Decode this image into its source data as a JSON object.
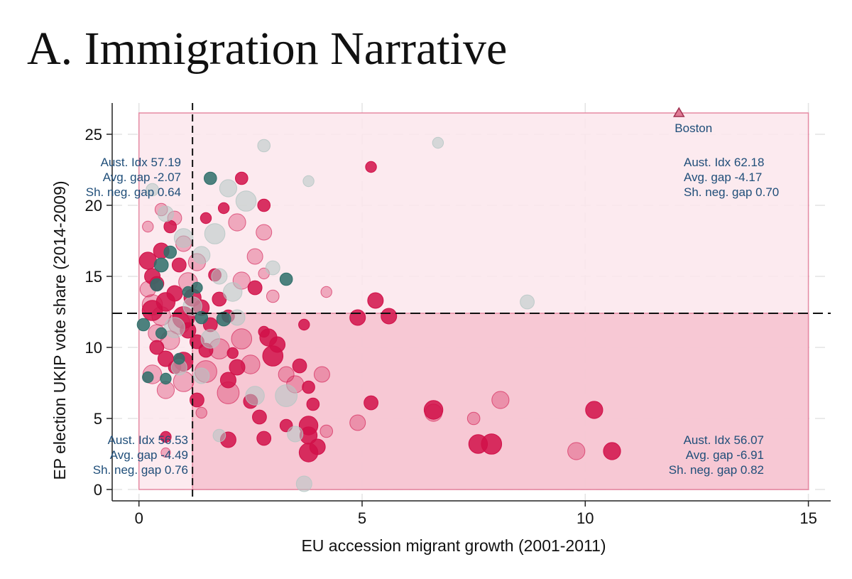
{
  "title": "A. Immigration Narrative",
  "colors": {
    "red": "#d11149",
    "teal": "#2e6f6a",
    "gray": "#b5c7c4",
    "pink_light": "#fce6ec",
    "pink_dark": "#f6c2cf",
    "region_border": "#e58aa3",
    "annotation": "#1f4e79"
  },
  "chart_data": {
    "type": "scatter",
    "xlabel": "EU accession migrant growth (2001-2011)",
    "ylabel": "EP election UKIP vote share (2014-2009)",
    "xlim": [
      -0.6,
      15.5
    ],
    "ylim": [
      -0.8,
      27.2
    ],
    "x_ticks": [
      0,
      5,
      10,
      15
    ],
    "y_ticks": [
      0,
      5,
      10,
      15,
      20,
      25
    ],
    "grid": true,
    "threshold_x": 1.2,
    "threshold_y": 12.4,
    "regions": [
      {
        "name": "upper",
        "x0": 0,
        "x1": 15,
        "y0": 0,
        "y1": 26.5,
        "shade": "light"
      },
      {
        "name": "lower-right",
        "x0": 1.2,
        "x1": 15,
        "y0": 0,
        "y1": 12.4,
        "shade": "dark"
      }
    ],
    "annotations": [
      {
        "quadrant": "top-left",
        "lines": [
          "Aust. Idx 57.19",
          "Avg. gap -2.07",
          "Sh. neg. gap 0.64"
        ]
      },
      {
        "quadrant": "top-right",
        "lines": [
          "Aust. Idx 62.18",
          "Avg. gap -4.17",
          "Sh. neg. gap 0.70"
        ]
      },
      {
        "quadrant": "bottom-left",
        "lines": [
          "Aust. Idx 56.53",
          "Avg. gap -4.49",
          "Sh. neg. gap 0.76"
        ]
      },
      {
        "quadrant": "bottom-right",
        "lines": [
          "Aust. Idx 56.07",
          "Avg. gap -6.91",
          "Sh. neg. gap 0.82"
        ]
      }
    ],
    "outlier": {
      "label": "Boston",
      "x": 12.1,
      "y": 26.5,
      "marker": "triangle"
    },
    "points": [
      [
        0.2,
        16.1,
        1.1,
        "r"
      ],
      [
        0.3,
        15.0,
        1.0,
        "r"
      ],
      [
        0.4,
        14.5,
        0.9,
        "r"
      ],
      [
        0.5,
        16.8,
        1.0,
        "r"
      ],
      [
        0.6,
        13.2,
        1.2,
        "r"
      ],
      [
        0.3,
        12.6,
        1.3,
        "r"
      ],
      [
        0.8,
        13.8,
        1.0,
        "r"
      ],
      [
        0.9,
        15.8,
        0.9,
        "r"
      ],
      [
        0.7,
        18.5,
        0.8,
        "r"
      ],
      [
        1.0,
        12.1,
        1.4,
        "r"
      ],
      [
        1.2,
        13.5,
        1.1,
        "r"
      ],
      [
        1.1,
        11.2,
        1.0,
        "r"
      ],
      [
        1.3,
        10.4,
        0.9,
        "r"
      ],
      [
        1.4,
        12.8,
        1.0,
        "r"
      ],
      [
        1.5,
        9.8,
        0.9,
        "r"
      ],
      [
        0.4,
        10.0,
        0.9,
        "r"
      ],
      [
        0.6,
        9.2,
        1.0,
        "r"
      ],
      [
        0.8,
        8.6,
        0.8,
        "r"
      ],
      [
        1.0,
        9.0,
        1.2,
        "r"
      ],
      [
        1.6,
        11.6,
        0.9,
        "r"
      ],
      [
        1.7,
        15.1,
        0.8,
        "r"
      ],
      [
        1.8,
        13.4,
        0.9,
        "r"
      ],
      [
        2.0,
        12.2,
        0.8,
        "r"
      ],
      [
        2.3,
        21.9,
        0.8,
        "r"
      ],
      [
        2.8,
        20.0,
        0.8,
        "r"
      ],
      [
        1.9,
        19.8,
        0.7,
        "r"
      ],
      [
        1.5,
        19.1,
        0.7,
        "r"
      ],
      [
        2.6,
        14.2,
        0.9,
        "r"
      ],
      [
        2.9,
        10.7,
        1.1,
        "r"
      ],
      [
        3.0,
        9.4,
        1.3,
        "r"
      ],
      [
        2.2,
        8.6,
        1.0,
        "r"
      ],
      [
        2.0,
        7.7,
        1.0,
        "r"
      ],
      [
        2.5,
        6.2,
        0.9,
        "r"
      ],
      [
        2.7,
        5.1,
        0.9,
        "r"
      ],
      [
        3.1,
        10.2,
        1.0,
        "r"
      ],
      [
        3.6,
        8.7,
        0.9,
        "r"
      ],
      [
        3.8,
        7.2,
        0.8,
        "r"
      ],
      [
        3.7,
        11.6,
        0.7,
        "r"
      ],
      [
        3.9,
        6.0,
        0.8,
        "r"
      ],
      [
        3.8,
        4.5,
        1.2,
        "r"
      ],
      [
        3.8,
        3.8,
        1.1,
        "r"
      ],
      [
        3.8,
        2.6,
        1.2,
        "r"
      ],
      [
        2.0,
        3.5,
        1.0,
        "r"
      ],
      [
        2.8,
        3.6,
        0.9,
        "r"
      ],
      [
        3.3,
        4.5,
        0.8,
        "r"
      ],
      [
        4.0,
        3.0,
        1.0,
        "r"
      ],
      [
        4.9,
        12.1,
        1.0,
        "r"
      ],
      [
        5.3,
        13.3,
        1.0,
        "r"
      ],
      [
        5.6,
        12.2,
        1.0,
        "r"
      ],
      [
        5.2,
        6.1,
        0.9,
        "r"
      ],
      [
        6.6,
        5.6,
        1.2,
        "r"
      ],
      [
        7.6,
        3.2,
        1.2,
        "r"
      ],
      [
        7.9,
        3.2,
        1.3,
        "r"
      ],
      [
        10.2,
        5.6,
        1.1,
        "r"
      ],
      [
        10.6,
        2.7,
        1.1,
        "r"
      ],
      [
        1.3,
        6.3,
        0.9,
        "r"
      ],
      [
        0.6,
        3.7,
        0.7,
        "r"
      ],
      [
        5.2,
        22.7,
        0.7,
        "r"
      ],
      [
        2.8,
        11.1,
        0.7,
        "r"
      ],
      [
        2.1,
        9.6,
        0.7,
        "r"
      ],
      [
        0.2,
        14.1,
        1.0,
        "l"
      ],
      [
        0.3,
        13.0,
        1.3,
        "l"
      ],
      [
        0.5,
        12.2,
        1.2,
        "l"
      ],
      [
        0.4,
        11.0,
        1.1,
        "l"
      ],
      [
        0.7,
        10.5,
        1.2,
        "l"
      ],
      [
        0.9,
        11.7,
        1.4,
        "l"
      ],
      [
        1.1,
        14.6,
        1.2,
        "l"
      ],
      [
        1.3,
        16.0,
        1.1,
        "l"
      ],
      [
        1.0,
        17.3,
        1.0,
        "l"
      ],
      [
        0.8,
        19.1,
        0.9,
        "l"
      ],
      [
        0.5,
        19.7,
        0.8,
        "l"
      ],
      [
        0.2,
        18.5,
        0.7,
        "l"
      ],
      [
        0.3,
        8.1,
        1.2,
        "l"
      ],
      [
        0.6,
        7.0,
        1.1,
        "l"
      ],
      [
        1.0,
        7.6,
        1.3,
        "l"
      ],
      [
        1.5,
        8.3,
        1.4,
        "l"
      ],
      [
        1.8,
        9.9,
        1.3,
        "l"
      ],
      [
        2.3,
        10.6,
        1.3,
        "l"
      ],
      [
        2.5,
        8.8,
        1.2,
        "l"
      ],
      [
        2.0,
        6.8,
        1.4,
        "l"
      ],
      [
        2.3,
        14.7,
        1.1,
        "l"
      ],
      [
        2.6,
        16.4,
        1.0,
        "l"
      ],
      [
        2.8,
        18.1,
        1.0,
        "l"
      ],
      [
        2.2,
        18.8,
        1.1,
        "l"
      ],
      [
        3.3,
        8.1,
        1.0,
        "l"
      ],
      [
        3.5,
        7.4,
        1.1,
        "l"
      ],
      [
        4.1,
        8.1,
        1.0,
        "l"
      ],
      [
        4.2,
        4.1,
        0.8,
        "l"
      ],
      [
        4.9,
        4.7,
        1.0,
        "l"
      ],
      [
        6.6,
        5.4,
        1.1,
        "l"
      ],
      [
        7.5,
        5.0,
        0.8,
        "l"
      ],
      [
        8.1,
        6.3,
        1.1,
        "l"
      ],
      [
        9.8,
        2.7,
        1.1,
        "l"
      ],
      [
        4.2,
        13.9,
        0.7,
        "l"
      ],
      [
        2.8,
        15.2,
        0.7,
        "l"
      ],
      [
        3.0,
        13.6,
        0.8,
        "l"
      ],
      [
        0.6,
        2.6,
        0.6,
        "l"
      ],
      [
        1.4,
        5.4,
        0.7,
        "l"
      ],
      [
        0.3,
        21.1,
        0.8,
        "g"
      ],
      [
        0.6,
        19.4,
        1.0,
        "g"
      ],
      [
        1.0,
        17.7,
        1.2,
        "g"
      ],
      [
        1.4,
        16.5,
        1.1,
        "g"
      ],
      [
        1.8,
        15.0,
        1.0,
        "g"
      ],
      [
        2.1,
        13.9,
        1.2,
        "g"
      ],
      [
        2.4,
        20.3,
        1.3,
        "g"
      ],
      [
        2.0,
        21.2,
        1.1,
        "g"
      ],
      [
        2.8,
        24.2,
        0.8,
        "g"
      ],
      [
        3.8,
        21.7,
        0.7,
        "g"
      ],
      [
        1.7,
        18.0,
        1.3,
        "g"
      ],
      [
        1.2,
        12.9,
        1.2,
        "g"
      ],
      [
        0.8,
        11.4,
        1.3,
        "g"
      ],
      [
        1.6,
        10.6,
        1.2,
        "g"
      ],
      [
        2.2,
        12.1,
        1.0,
        "g"
      ],
      [
        3.0,
        15.6,
        0.9,
        "g"
      ],
      [
        3.3,
        6.6,
        1.4,
        "g"
      ],
      [
        2.6,
        6.6,
        1.2,
        "g"
      ],
      [
        1.8,
        3.8,
        0.8,
        "g"
      ],
      [
        3.5,
        3.9,
        1.0,
        "g"
      ],
      [
        3.7,
        0.4,
        1.0,
        "g"
      ],
      [
        6.7,
        24.4,
        0.7,
        "g"
      ],
      [
        8.7,
        13.2,
        0.9,
        "g"
      ],
      [
        0.9,
        8.6,
        1.0,
        "g"
      ],
      [
        1.4,
        8.0,
        1.0,
        "g"
      ],
      [
        0.5,
        15.8,
        0.9,
        "t"
      ],
      [
        0.7,
        16.7,
        0.8,
        "t"
      ],
      [
        0.4,
        14.4,
        0.8,
        "t"
      ],
      [
        1.3,
        14.2,
        0.7,
        "t"
      ],
      [
        1.6,
        21.9,
        0.8,
        "t"
      ],
      [
        1.9,
        12.0,
        0.9,
        "t"
      ],
      [
        0.1,
        11.6,
        0.8,
        "t"
      ],
      [
        0.5,
        11.0,
        0.7,
        "t"
      ],
      [
        0.9,
        9.2,
        0.7,
        "t"
      ],
      [
        0.6,
        7.8,
        0.7,
        "t"
      ],
      [
        0.2,
        7.9,
        0.7,
        "t"
      ],
      [
        3.3,
        14.8,
        0.8,
        "t"
      ],
      [
        1.1,
        13.9,
        0.7,
        "t"
      ],
      [
        1.4,
        12.1,
        0.8,
        "t"
      ]
    ]
  }
}
